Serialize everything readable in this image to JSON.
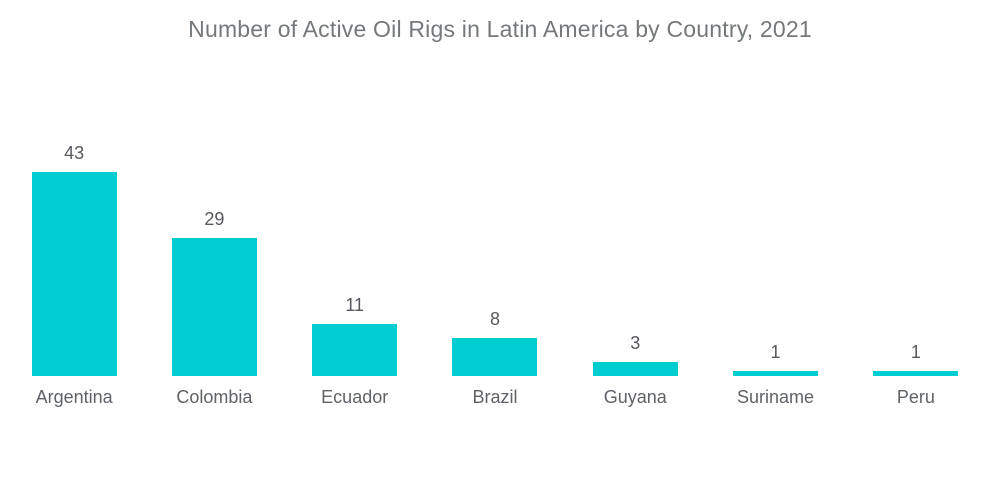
{
  "chart_data": {
    "type": "bar",
    "title": "Number of Active Oil Rigs in Latin America by Country, 2021",
    "categories": [
      "Argentina",
      "Colombia",
      "Ecuador",
      "Brazil",
      "Guyana",
      "Suriname",
      "Peru"
    ],
    "values": [
      43,
      29,
      11,
      8,
      3,
      1,
      1
    ],
    "xlabel": "",
    "ylabel": "",
    "ylim": [
      0,
      43
    ],
    "grid": false,
    "legend_position": "none",
    "data_labels_shown": true,
    "bar_color": "#00cdd1",
    "title_color": "#75787b",
    "value_label_color": "#56585d",
    "category_label_color": "#5f6267",
    "background_color": "#ffffff"
  }
}
